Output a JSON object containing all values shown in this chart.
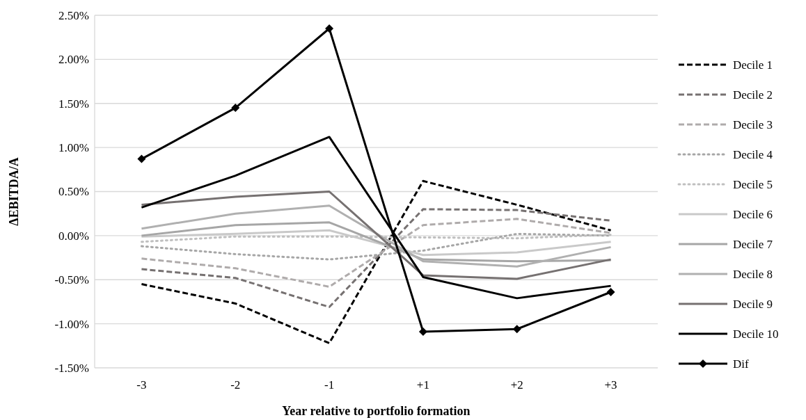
{
  "chart_data": {
    "type": "line",
    "xlabel": "Year relative to portfolio formation",
    "ylabel": "ΔEBITDA/A",
    "categories": [
      "-3",
      "-2",
      "-1",
      "+1",
      "+2",
      "+3"
    ],
    "ylim": [
      -1.5,
      2.5
    ],
    "yticks": [
      {
        "value": -1.5,
        "label": "-1.50%"
      },
      {
        "value": -1,
        "label": "-1.00%"
      },
      {
        "value": -0.5,
        "label": "-0.50%"
      },
      {
        "value": 0,
        "label": "0.00%"
      },
      {
        "value": 0.5,
        "label": "0.50%"
      },
      {
        "value": 1,
        "label": "1.00%"
      },
      {
        "value": 1.5,
        "label": "1.50%"
      },
      {
        "value": 2,
        "label": "2.00%"
      },
      {
        "value": 2.5,
        "label": "2.50%"
      }
    ],
    "grid": "y",
    "legend": "right",
    "marker": "none",
    "series": [
      {
        "name": "Decile 1",
        "color": "#000000",
        "line_style": "dashed",
        "values": [
          -0.55,
          -0.77,
          -1.22,
          0.62,
          0.35,
          0.06
        ]
      },
      {
        "name": "Decile 2",
        "color": "#767171",
        "line_style": "dashed",
        "values": [
          -0.38,
          -0.48,
          -0.81,
          0.3,
          0.29,
          0.17
        ]
      },
      {
        "name": "Decile 3",
        "color": "#afabab",
        "line_style": "dashed",
        "values": [
          -0.26,
          -0.37,
          -0.58,
          0.12,
          0.19,
          0.03
        ]
      },
      {
        "name": "Decile 4",
        "color": "#a6a6a6",
        "line_style": "dotted",
        "values": [
          -0.12,
          -0.21,
          -0.27,
          -0.17,
          0.02,
          0
        ]
      },
      {
        "name": "Decile 5",
        "color": "#bfbfbf",
        "line_style": "dotted",
        "values": [
          -0.07,
          -0.01,
          -0.01,
          -0.02,
          -0.03,
          0.01
        ]
      },
      {
        "name": "Decile 6",
        "color": "#c9c9c9",
        "line_style": "solid",
        "values": [
          -0.01,
          0.02,
          0.06,
          -0.22,
          -0.19,
          -0.07
        ]
      },
      {
        "name": "Decile 7",
        "color": "#a6a6a6",
        "line_style": "solid",
        "values": [
          0,
          0.12,
          0.15,
          -0.27,
          -0.29,
          -0.28
        ]
      },
      {
        "name": "Decile 8",
        "color": "#b0b0b0",
        "line_style": "solid",
        "values": [
          0.08,
          0.25,
          0.34,
          -0.29,
          -0.35,
          -0.13
        ]
      },
      {
        "name": "Decile 9",
        "color": "#767171",
        "line_style": "solid",
        "values": [
          0.35,
          0.44,
          0.5,
          -0.45,
          -0.49,
          -0.27
        ]
      },
      {
        "name": "Decile 10",
        "color": "#000000",
        "line_style": "solid",
        "values": [
          0.32,
          0.68,
          1.12,
          -0.47,
          -0.71,
          -0.57
        ]
      },
      {
        "name": "Dif",
        "color": "#000000",
        "line_style": "solid",
        "marker": "diamond",
        "values": [
          0.87,
          1.45,
          2.35,
          -1.09,
          -1.06,
          -0.64
        ]
      }
    ]
  }
}
